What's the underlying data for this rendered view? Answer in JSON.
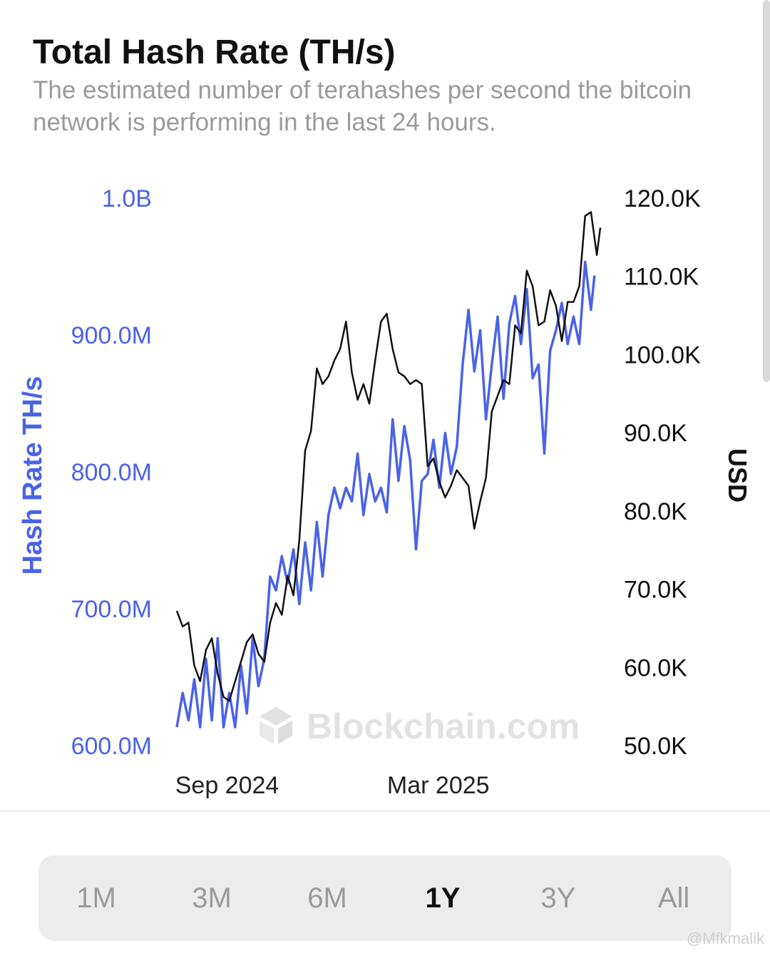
{
  "header": {
    "title": "Total Hash Rate (TH/s)",
    "subtitle": "The estimated number of terahashes per second the bitcoin network is performing in the last 24 hours."
  },
  "watermark": "Blockchain.com",
  "credit": "@Mfkmalik",
  "range_selector": {
    "options": [
      "1M",
      "3M",
      "6M",
      "1Y",
      "3Y",
      "All"
    ],
    "active": "1Y"
  },
  "chart_data": {
    "type": "line",
    "x_tick_labels": [
      "Sep 2024",
      "Mar 2025"
    ],
    "x_ticks": [
      "2024-09-01",
      "2025-03-01"
    ],
    "grid": false,
    "y_left": {
      "label": "Hash Rate TH/s",
      "tick_labels": [
        "600.0M",
        "700.0M",
        "800.0M",
        "900.0M",
        "1.0B"
      ],
      "range": [
        600000000,
        1000000000
      ],
      "color": "#4a63e7"
    },
    "y_right": {
      "label": "USD",
      "tick_labels": [
        "50.0K",
        "60.0K",
        "70.0K",
        "80.0K",
        "90.0K",
        "100.0K",
        "110.0K",
        "120.0K"
      ],
      "range": [
        50000,
        120000
      ],
      "color": "#111111"
    },
    "series": [
      {
        "axis": "left",
        "color": "#4a63e7",
        "points": [
          [
            "2024-07-26",
            615000000
          ],
          [
            "2024-07-31",
            640000000
          ],
          [
            "2024-08-05",
            620000000
          ],
          [
            "2024-08-10",
            650000000
          ],
          [
            "2024-08-15",
            615000000
          ],
          [
            "2024-08-20",
            665000000
          ],
          [
            "2024-08-25",
            620000000
          ],
          [
            "2024-08-30",
            680000000
          ],
          [
            "2024-09-04",
            615000000
          ],
          [
            "2024-09-09",
            640000000
          ],
          [
            "2024-09-14",
            615000000
          ],
          [
            "2024-09-19",
            660000000
          ],
          [
            "2024-09-24",
            625000000
          ],
          [
            "2024-09-29",
            680000000
          ],
          [
            "2024-10-04",
            645000000
          ],
          [
            "2024-10-09",
            665000000
          ],
          [
            "2024-10-14",
            725000000
          ],
          [
            "2024-10-19",
            715000000
          ],
          [
            "2024-10-24",
            740000000
          ],
          [
            "2024-10-29",
            720000000
          ],
          [
            "2024-11-03",
            745000000
          ],
          [
            "2024-11-08",
            705000000
          ],
          [
            "2024-11-13",
            750000000
          ],
          [
            "2024-11-18",
            715000000
          ],
          [
            "2024-11-23",
            765000000
          ],
          [
            "2024-11-28",
            725000000
          ],
          [
            "2024-12-03",
            770000000
          ],
          [
            "2024-12-08",
            790000000
          ],
          [
            "2024-12-13",
            775000000
          ],
          [
            "2024-12-18",
            790000000
          ],
          [
            "2024-12-23",
            780000000
          ],
          [
            "2024-12-28",
            815000000
          ],
          [
            "2025-01-02",
            770000000
          ],
          [
            "2025-01-07",
            800000000
          ],
          [
            "2025-01-12",
            780000000
          ],
          [
            "2025-01-17",
            790000000
          ],
          [
            "2025-01-22",
            772000000
          ],
          [
            "2025-01-27",
            840000000
          ],
          [
            "2025-02-01",
            795000000
          ],
          [
            "2025-02-06",
            835000000
          ],
          [
            "2025-02-11",
            810000000
          ],
          [
            "2025-02-16",
            745000000
          ],
          [
            "2025-02-21",
            795000000
          ],
          [
            "2025-02-26",
            800000000
          ],
          [
            "2025-03-03",
            825000000
          ],
          [
            "2025-03-08",
            790000000
          ],
          [
            "2025-03-13",
            830000000
          ],
          [
            "2025-03-18",
            800000000
          ],
          [
            "2025-03-23",
            820000000
          ],
          [
            "2025-03-28",
            880000000
          ],
          [
            "2025-04-02",
            920000000
          ],
          [
            "2025-04-07",
            875000000
          ],
          [
            "2025-04-12",
            905000000
          ],
          [
            "2025-04-17",
            840000000
          ],
          [
            "2025-04-22",
            880000000
          ],
          [
            "2025-04-27",
            915000000
          ],
          [
            "2025-05-02",
            855000000
          ],
          [
            "2025-05-07",
            910000000
          ],
          [
            "2025-05-12",
            930000000
          ],
          [
            "2025-05-17",
            895000000
          ],
          [
            "2025-05-22",
            935000000
          ],
          [
            "2025-05-27",
            870000000
          ],
          [
            "2025-06-01",
            880000000
          ],
          [
            "2025-06-06",
            815000000
          ],
          [
            "2025-06-11",
            890000000
          ],
          [
            "2025-06-16",
            905000000
          ],
          [
            "2025-06-21",
            925000000
          ],
          [
            "2025-06-26",
            895000000
          ],
          [
            "2025-07-01",
            915000000
          ],
          [
            "2025-07-06",
            895000000
          ],
          [
            "2025-07-11",
            955000000
          ],
          [
            "2025-07-16",
            920000000
          ],
          [
            "2025-07-19",
            945000000
          ]
        ]
      },
      {
        "axis": "right",
        "color": "#111111",
        "points": [
          [
            "2024-07-26",
            67500
          ],
          [
            "2024-07-31",
            65500
          ],
          [
            "2024-08-05",
            66000
          ],
          [
            "2024-08-10",
            60500
          ],
          [
            "2024-08-15",
            58500
          ],
          [
            "2024-08-20",
            62500
          ],
          [
            "2024-08-25",
            64000
          ],
          [
            "2024-08-30",
            59500
          ],
          [
            "2024-09-04",
            56500
          ],
          [
            "2024-09-09",
            56000
          ],
          [
            "2024-09-14",
            58500
          ],
          [
            "2024-09-19",
            61000
          ],
          [
            "2024-09-24",
            63500
          ],
          [
            "2024-09-29",
            64500
          ],
          [
            "2024-10-04",
            62000
          ],
          [
            "2024-10-09",
            61000
          ],
          [
            "2024-10-14",
            66000
          ],
          [
            "2024-10-19",
            68500
          ],
          [
            "2024-10-24",
            67000
          ],
          [
            "2024-10-29",
            72000
          ],
          [
            "2024-11-03",
            69500
          ],
          [
            "2024-11-08",
            76500
          ],
          [
            "2024-11-13",
            88000
          ],
          [
            "2024-11-18",
            90500
          ],
          [
            "2024-11-23",
            98500
          ],
          [
            "2024-11-28",
            96500
          ],
          [
            "2024-12-03",
            97500
          ],
          [
            "2024-12-08",
            99500
          ],
          [
            "2024-12-13",
            101000
          ],
          [
            "2024-12-18",
            104500
          ],
          [
            "2024-12-23",
            98000
          ],
          [
            "2024-12-28",
            94500
          ],
          [
            "2025-01-02",
            96500
          ],
          [
            "2025-01-07",
            94000
          ],
          [
            "2025-01-12",
            99500
          ],
          [
            "2025-01-17",
            104500
          ],
          [
            "2025-01-22",
            105500
          ],
          [
            "2025-01-27",
            101000
          ],
          [
            "2025-02-01",
            98000
          ],
          [
            "2025-02-06",
            97500
          ],
          [
            "2025-02-11",
            96500
          ],
          [
            "2025-02-16",
            97000
          ],
          [
            "2025-02-21",
            96500
          ],
          [
            "2025-02-26",
            86000
          ],
          [
            "2025-03-03",
            87000
          ],
          [
            "2025-03-08",
            84000
          ],
          [
            "2025-03-13",
            82000
          ],
          [
            "2025-03-18",
            83500
          ],
          [
            "2025-03-23",
            85500
          ],
          [
            "2025-03-28",
            84500
          ],
          [
            "2025-04-02",
            83500
          ],
          [
            "2025-04-07",
            78000
          ],
          [
            "2025-04-12",
            81500
          ],
          [
            "2025-04-17",
            84500
          ],
          [
            "2025-04-22",
            93000
          ],
          [
            "2025-04-27",
            95000
          ],
          [
            "2025-05-02",
            97000
          ],
          [
            "2025-05-07",
            96500
          ],
          [
            "2025-05-12",
            104000
          ],
          [
            "2025-05-17",
            103000
          ],
          [
            "2025-05-22",
            111000
          ],
          [
            "2025-05-27",
            109000
          ],
          [
            "2025-06-01",
            104000
          ],
          [
            "2025-06-06",
            104500
          ],
          [
            "2025-06-11",
            108500
          ],
          [
            "2025-06-16",
            106500
          ],
          [
            "2025-06-21",
            102000
          ],
          [
            "2025-06-26",
            107000
          ],
          [
            "2025-07-01",
            107000
          ],
          [
            "2025-07-06",
            109000
          ],
          [
            "2025-07-11",
            118000
          ],
          [
            "2025-07-16",
            118500
          ],
          [
            "2025-07-21",
            113000
          ],
          [
            "2025-07-24",
            116500
          ]
        ]
      }
    ]
  }
}
